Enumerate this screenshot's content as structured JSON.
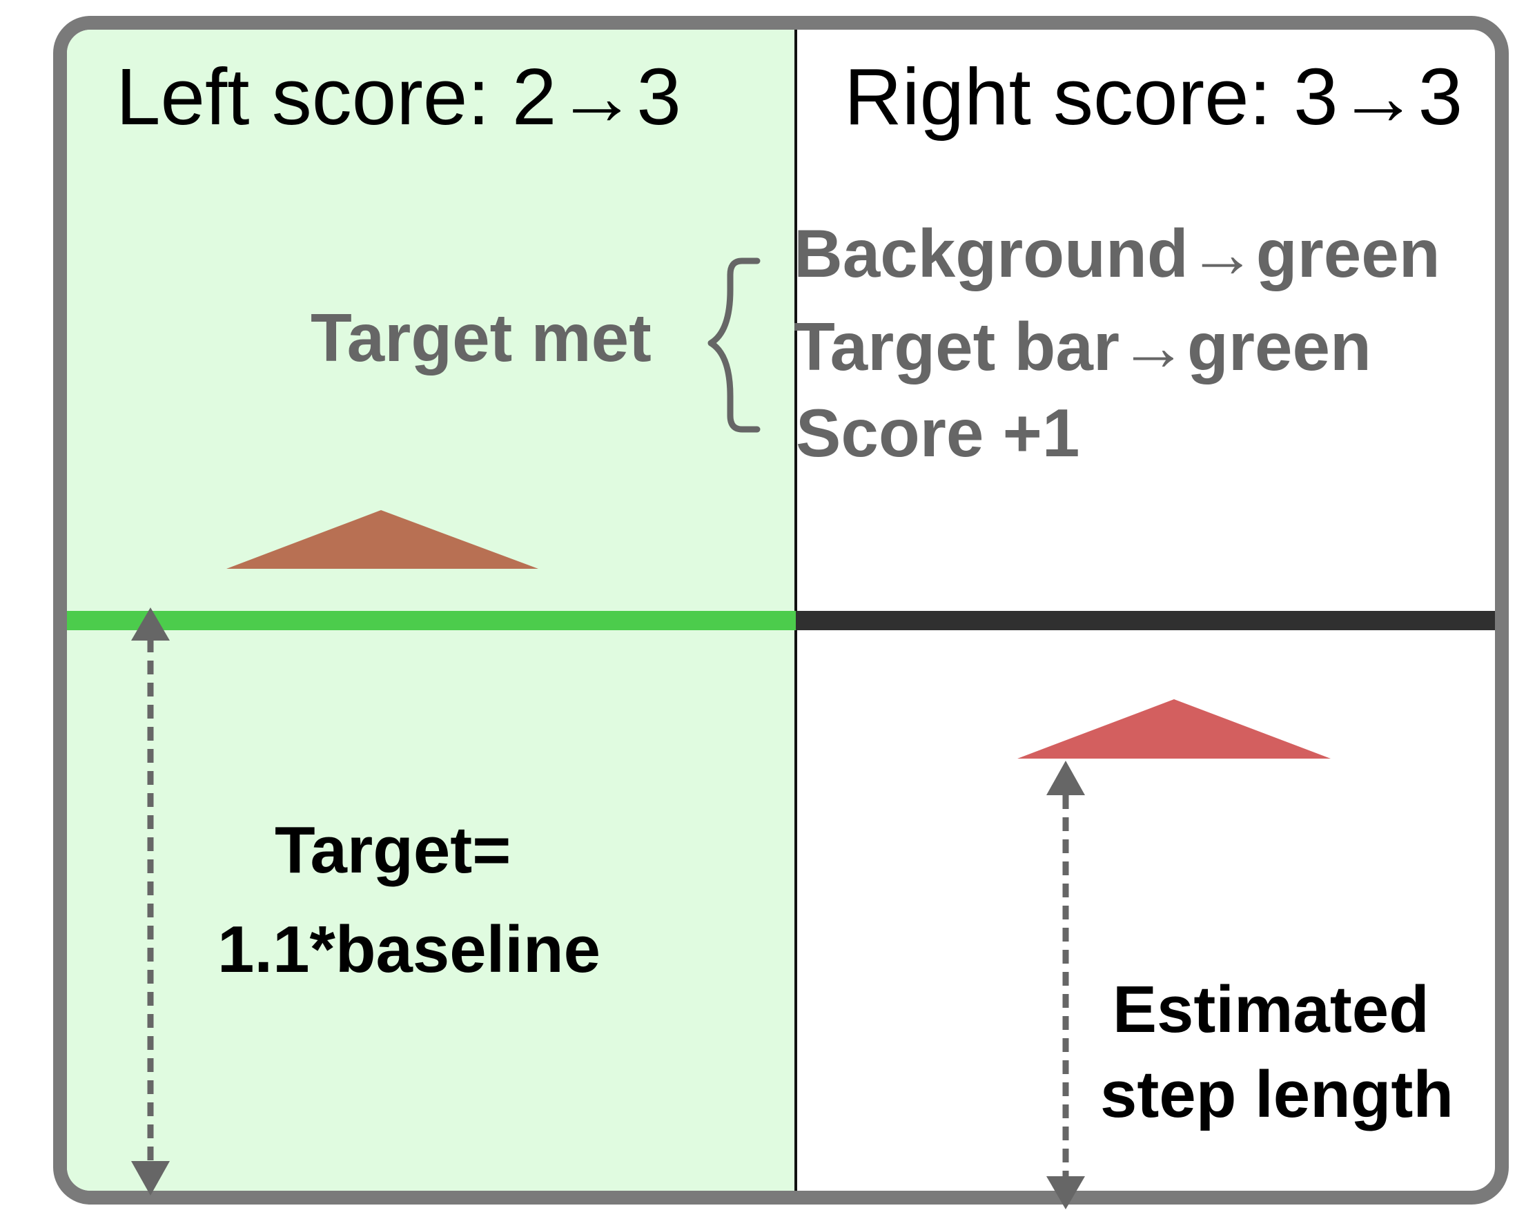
{
  "left_panel": {
    "score_text": "Left score: 2→3",
    "target_met_label": "Target met",
    "target_label_line1": "Target=",
    "target_label_line2": "1.1*baseline",
    "background_color": "#e0fbe0",
    "bar_color": "#4ccc4c",
    "marker_color": "#b87053"
  },
  "right_panel": {
    "score_text": "Right score: 3→3",
    "effects": [
      "Background→green",
      "Target bar→green",
      "Score +1"
    ],
    "estimate_label_line1": "Estimated",
    "estimate_label_line2": "step length",
    "bar_color": "#303030",
    "marker_color": "#d35f5f"
  },
  "icons": [
    "curly-brace",
    "double-headed-dashed-arrow",
    "triangle-marker"
  ]
}
